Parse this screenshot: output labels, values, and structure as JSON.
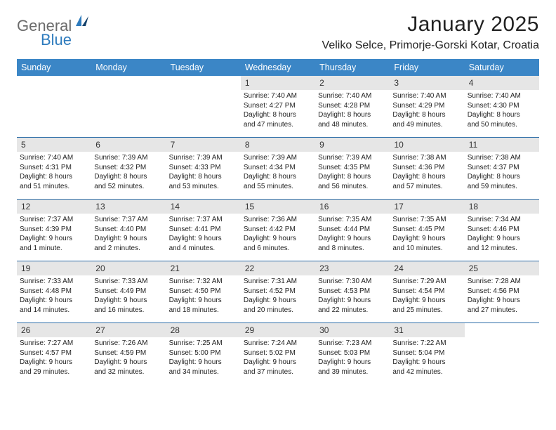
{
  "brand": {
    "word1": "General",
    "word2": "Blue"
  },
  "title": "January 2025",
  "subtitle": "Veliko Selce, Primorje-Gorski Kotar, Croatia",
  "colors": {
    "header_bg": "#3b86c6",
    "header_text": "#ffffff",
    "daynum_bg": "#e6e6e6",
    "week_border": "#2e6ea8",
    "logo_gray": "#6b6b6b",
    "logo_blue": "#2e7bbd",
    "page_bg": "#ffffff",
    "text": "#222222"
  },
  "typography": {
    "title_size_pt": 22,
    "subtitle_size_pt": 12,
    "dow_size_pt": 9,
    "body_size_pt": 7.5
  },
  "dow": [
    "Sunday",
    "Monday",
    "Tuesday",
    "Wednesday",
    "Thursday",
    "Friday",
    "Saturday"
  ],
  "weeks": [
    [
      null,
      null,
      null,
      {
        "n": "1",
        "sr": "Sunrise: 7:40 AM",
        "ss": "Sunset: 4:27 PM",
        "d1": "Daylight: 8 hours",
        "d2": "and 47 minutes."
      },
      {
        "n": "2",
        "sr": "Sunrise: 7:40 AM",
        "ss": "Sunset: 4:28 PM",
        "d1": "Daylight: 8 hours",
        "d2": "and 48 minutes."
      },
      {
        "n": "3",
        "sr": "Sunrise: 7:40 AM",
        "ss": "Sunset: 4:29 PM",
        "d1": "Daylight: 8 hours",
        "d2": "and 49 minutes."
      },
      {
        "n": "4",
        "sr": "Sunrise: 7:40 AM",
        "ss": "Sunset: 4:30 PM",
        "d1": "Daylight: 8 hours",
        "d2": "and 50 minutes."
      }
    ],
    [
      {
        "n": "5",
        "sr": "Sunrise: 7:40 AM",
        "ss": "Sunset: 4:31 PM",
        "d1": "Daylight: 8 hours",
        "d2": "and 51 minutes."
      },
      {
        "n": "6",
        "sr": "Sunrise: 7:39 AM",
        "ss": "Sunset: 4:32 PM",
        "d1": "Daylight: 8 hours",
        "d2": "and 52 minutes."
      },
      {
        "n": "7",
        "sr": "Sunrise: 7:39 AM",
        "ss": "Sunset: 4:33 PM",
        "d1": "Daylight: 8 hours",
        "d2": "and 53 minutes."
      },
      {
        "n": "8",
        "sr": "Sunrise: 7:39 AM",
        "ss": "Sunset: 4:34 PM",
        "d1": "Daylight: 8 hours",
        "d2": "and 55 minutes."
      },
      {
        "n": "9",
        "sr": "Sunrise: 7:39 AM",
        "ss": "Sunset: 4:35 PM",
        "d1": "Daylight: 8 hours",
        "d2": "and 56 minutes."
      },
      {
        "n": "10",
        "sr": "Sunrise: 7:38 AM",
        "ss": "Sunset: 4:36 PM",
        "d1": "Daylight: 8 hours",
        "d2": "and 57 minutes."
      },
      {
        "n": "11",
        "sr": "Sunrise: 7:38 AM",
        "ss": "Sunset: 4:37 PM",
        "d1": "Daylight: 8 hours",
        "d2": "and 59 minutes."
      }
    ],
    [
      {
        "n": "12",
        "sr": "Sunrise: 7:37 AM",
        "ss": "Sunset: 4:39 PM",
        "d1": "Daylight: 9 hours",
        "d2": "and 1 minute."
      },
      {
        "n": "13",
        "sr": "Sunrise: 7:37 AM",
        "ss": "Sunset: 4:40 PM",
        "d1": "Daylight: 9 hours",
        "d2": "and 2 minutes."
      },
      {
        "n": "14",
        "sr": "Sunrise: 7:37 AM",
        "ss": "Sunset: 4:41 PM",
        "d1": "Daylight: 9 hours",
        "d2": "and 4 minutes."
      },
      {
        "n": "15",
        "sr": "Sunrise: 7:36 AM",
        "ss": "Sunset: 4:42 PM",
        "d1": "Daylight: 9 hours",
        "d2": "and 6 minutes."
      },
      {
        "n": "16",
        "sr": "Sunrise: 7:35 AM",
        "ss": "Sunset: 4:44 PM",
        "d1": "Daylight: 9 hours",
        "d2": "and 8 minutes."
      },
      {
        "n": "17",
        "sr": "Sunrise: 7:35 AM",
        "ss": "Sunset: 4:45 PM",
        "d1": "Daylight: 9 hours",
        "d2": "and 10 minutes."
      },
      {
        "n": "18",
        "sr": "Sunrise: 7:34 AM",
        "ss": "Sunset: 4:46 PM",
        "d1": "Daylight: 9 hours",
        "d2": "and 12 minutes."
      }
    ],
    [
      {
        "n": "19",
        "sr": "Sunrise: 7:33 AM",
        "ss": "Sunset: 4:48 PM",
        "d1": "Daylight: 9 hours",
        "d2": "and 14 minutes."
      },
      {
        "n": "20",
        "sr": "Sunrise: 7:33 AM",
        "ss": "Sunset: 4:49 PM",
        "d1": "Daylight: 9 hours",
        "d2": "and 16 minutes."
      },
      {
        "n": "21",
        "sr": "Sunrise: 7:32 AM",
        "ss": "Sunset: 4:50 PM",
        "d1": "Daylight: 9 hours",
        "d2": "and 18 minutes."
      },
      {
        "n": "22",
        "sr": "Sunrise: 7:31 AM",
        "ss": "Sunset: 4:52 PM",
        "d1": "Daylight: 9 hours",
        "d2": "and 20 minutes."
      },
      {
        "n": "23",
        "sr": "Sunrise: 7:30 AM",
        "ss": "Sunset: 4:53 PM",
        "d1": "Daylight: 9 hours",
        "d2": "and 22 minutes."
      },
      {
        "n": "24",
        "sr": "Sunrise: 7:29 AM",
        "ss": "Sunset: 4:54 PM",
        "d1": "Daylight: 9 hours",
        "d2": "and 25 minutes."
      },
      {
        "n": "25",
        "sr": "Sunrise: 7:28 AM",
        "ss": "Sunset: 4:56 PM",
        "d1": "Daylight: 9 hours",
        "d2": "and 27 minutes."
      }
    ],
    [
      {
        "n": "26",
        "sr": "Sunrise: 7:27 AM",
        "ss": "Sunset: 4:57 PM",
        "d1": "Daylight: 9 hours",
        "d2": "and 29 minutes."
      },
      {
        "n": "27",
        "sr": "Sunrise: 7:26 AM",
        "ss": "Sunset: 4:59 PM",
        "d1": "Daylight: 9 hours",
        "d2": "and 32 minutes."
      },
      {
        "n": "28",
        "sr": "Sunrise: 7:25 AM",
        "ss": "Sunset: 5:00 PM",
        "d1": "Daylight: 9 hours",
        "d2": "and 34 minutes."
      },
      {
        "n": "29",
        "sr": "Sunrise: 7:24 AM",
        "ss": "Sunset: 5:02 PM",
        "d1": "Daylight: 9 hours",
        "d2": "and 37 minutes."
      },
      {
        "n": "30",
        "sr": "Sunrise: 7:23 AM",
        "ss": "Sunset: 5:03 PM",
        "d1": "Daylight: 9 hours",
        "d2": "and 39 minutes."
      },
      {
        "n": "31",
        "sr": "Sunrise: 7:22 AM",
        "ss": "Sunset: 5:04 PM",
        "d1": "Daylight: 9 hours",
        "d2": "and 42 minutes."
      },
      null
    ]
  ]
}
